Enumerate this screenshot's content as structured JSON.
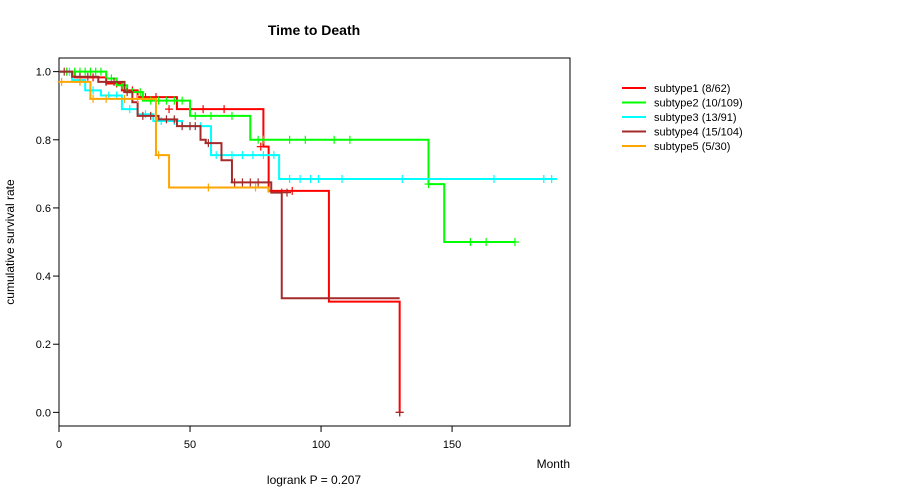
{
  "chart_data": {
    "type": "line",
    "title": "Time to Death",
    "xlabel": "Month",
    "ylabel": "cumulative survival rate",
    "xlim": [
      0,
      195
    ],
    "ylim": [
      -0.04,
      1.04
    ],
    "xticks": [
      0,
      50,
      100,
      150
    ],
    "yticks": [
      0.0,
      0.2,
      0.4,
      0.6,
      0.8,
      1.0
    ],
    "ytick_labels": [
      "0.0",
      "0.2",
      "0.4",
      "0.6",
      "0.8",
      "1.0"
    ],
    "annotation": "logrank P = 0.207",
    "legend_position": "right",
    "series": [
      {
        "name": "subtype1 (8/62)",
        "color": "#ff0000",
        "steps": [
          [
            0,
            1.0
          ],
          [
            6,
            0.983
          ],
          [
            18,
            0.965
          ],
          [
            24,
            0.945
          ],
          [
            30,
            0.925
          ],
          [
            45,
            0.89
          ],
          [
            78,
            0.78
          ],
          [
            80,
            0.65
          ],
          [
            103,
            0.325
          ],
          [
            130,
            0.0
          ]
        ],
        "end": 130,
        "censor": [
          [
            3,
            1.0
          ],
          [
            13,
            0.983
          ],
          [
            22,
            0.965
          ],
          [
            28,
            0.945
          ],
          [
            33,
            0.925
          ],
          [
            37,
            0.925
          ],
          [
            42,
            0.89
          ],
          [
            50,
            0.89
          ],
          [
            55,
            0.89
          ],
          [
            63,
            0.89
          ],
          [
            77,
            0.78
          ],
          [
            89,
            0.65
          ],
          [
            130,
            0.0
          ]
        ]
      },
      {
        "name": "subtype2 (10/109)",
        "color": "#00ff00",
        "steps": [
          [
            0,
            1.0
          ],
          [
            18,
            0.98
          ],
          [
            22,
            0.96
          ],
          [
            26,
            0.94
          ],
          [
            32,
            0.915
          ],
          [
            50,
            0.87
          ],
          [
            73,
            0.8
          ],
          [
            141,
            0.67
          ],
          [
            147,
            0.5
          ]
        ],
        "end": 174,
        "censor": [
          [
            3,
            1.0
          ],
          [
            6,
            1.0
          ],
          [
            8,
            1.0
          ],
          [
            10,
            1.0
          ],
          [
            12,
            1.0
          ],
          [
            14,
            1.0
          ],
          [
            16,
            1.0
          ],
          [
            20,
            0.98
          ],
          [
            24,
            0.96
          ],
          [
            28,
            0.94
          ],
          [
            31,
            0.94
          ],
          [
            35,
            0.915
          ],
          [
            38,
            0.915
          ],
          [
            41,
            0.915
          ],
          [
            44,
            0.915
          ],
          [
            47,
            0.915
          ],
          [
            52,
            0.87
          ],
          [
            58,
            0.87
          ],
          [
            66,
            0.87
          ],
          [
            76,
            0.8
          ],
          [
            78,
            0.8
          ],
          [
            88,
            0.8
          ],
          [
            94,
            0.8
          ],
          [
            105,
            0.8
          ],
          [
            111,
            0.8
          ],
          [
            141,
            0.67
          ],
          [
            157,
            0.5
          ],
          [
            163,
            0.5
          ],
          [
            174,
            0.5
          ]
        ]
      },
      {
        "name": "subtype3 (13/91)",
        "color": "#00ffff",
        "steps": [
          [
            0,
            1.0
          ],
          [
            5,
            0.975
          ],
          [
            10,
            0.945
          ],
          [
            16,
            0.93
          ],
          [
            24,
            0.89
          ],
          [
            30,
            0.875
          ],
          [
            36,
            0.855
          ],
          [
            47,
            0.84
          ],
          [
            58,
            0.755
          ],
          [
            84,
            0.685
          ]
        ],
        "end": 190,
        "censor": [
          [
            4,
            1.0
          ],
          [
            8,
            0.975
          ],
          [
            13,
            0.945
          ],
          [
            19,
            0.93
          ],
          [
            22,
            0.93
          ],
          [
            27,
            0.89
          ],
          [
            33,
            0.875
          ],
          [
            39,
            0.855
          ],
          [
            44,
            0.855
          ],
          [
            50,
            0.84
          ],
          [
            54,
            0.84
          ],
          [
            60,
            0.755
          ],
          [
            62,
            0.755
          ],
          [
            66,
            0.755
          ],
          [
            70,
            0.755
          ],
          [
            74,
            0.755
          ],
          [
            78,
            0.755
          ],
          [
            82,
            0.755
          ],
          [
            88,
            0.685
          ],
          [
            92,
            0.685
          ],
          [
            96,
            0.685
          ],
          [
            99,
            0.685
          ],
          [
            108,
            0.685
          ],
          [
            131,
            0.685
          ],
          [
            166,
            0.685
          ],
          [
            185,
            0.685
          ],
          [
            188,
            0.685
          ]
        ]
      },
      {
        "name": "subtype4 (15/104)",
        "color": "#a52a2a",
        "steps": [
          [
            0,
            1.0
          ],
          [
            5,
            0.985
          ],
          [
            15,
            0.97
          ],
          [
            25,
            0.94
          ],
          [
            28,
            0.91
          ],
          [
            30,
            0.87
          ],
          [
            38,
            0.86
          ],
          [
            45,
            0.84
          ],
          [
            54,
            0.8
          ],
          [
            56,
            0.79
          ],
          [
            62,
            0.74
          ],
          [
            66,
            0.675
          ],
          [
            81,
            0.645
          ],
          [
            85,
            0.335
          ]
        ],
        "end": 130,
        "censor": [
          [
            2,
            1.0
          ],
          [
            8,
            0.985
          ],
          [
            11,
            0.985
          ],
          [
            18,
            0.97
          ],
          [
            21,
            0.97
          ],
          [
            26,
            0.94
          ],
          [
            32,
            0.87
          ],
          [
            35,
            0.87
          ],
          [
            41,
            0.86
          ],
          [
            44,
            0.86
          ],
          [
            47,
            0.84
          ],
          [
            50,
            0.84
          ],
          [
            52,
            0.84
          ],
          [
            57,
            0.79
          ],
          [
            67,
            0.675
          ],
          [
            70,
            0.675
          ],
          [
            73,
            0.675
          ],
          [
            76,
            0.675
          ],
          [
            85,
            0.645
          ],
          [
            87,
            0.645
          ],
          [
            130,
            0.0
          ]
        ]
      },
      {
        "name": "subtype5 (5/30)",
        "color": "#ffa500",
        "steps": [
          [
            0,
            0.97
          ],
          [
            12,
            0.92
          ],
          [
            37,
            0.755
          ],
          [
            42,
            0.66
          ],
          [
            80,
            0.645
          ]
        ],
        "end": 80,
        "censor": [
          [
            1,
            0.97
          ],
          [
            8,
            0.97
          ],
          [
            13,
            0.92
          ],
          [
            18,
            0.92
          ],
          [
            25,
            0.92
          ],
          [
            30,
            0.92
          ],
          [
            38,
            0.755
          ],
          [
            57,
            0.66
          ],
          [
            75,
            0.66
          ]
        ]
      }
    ]
  }
}
